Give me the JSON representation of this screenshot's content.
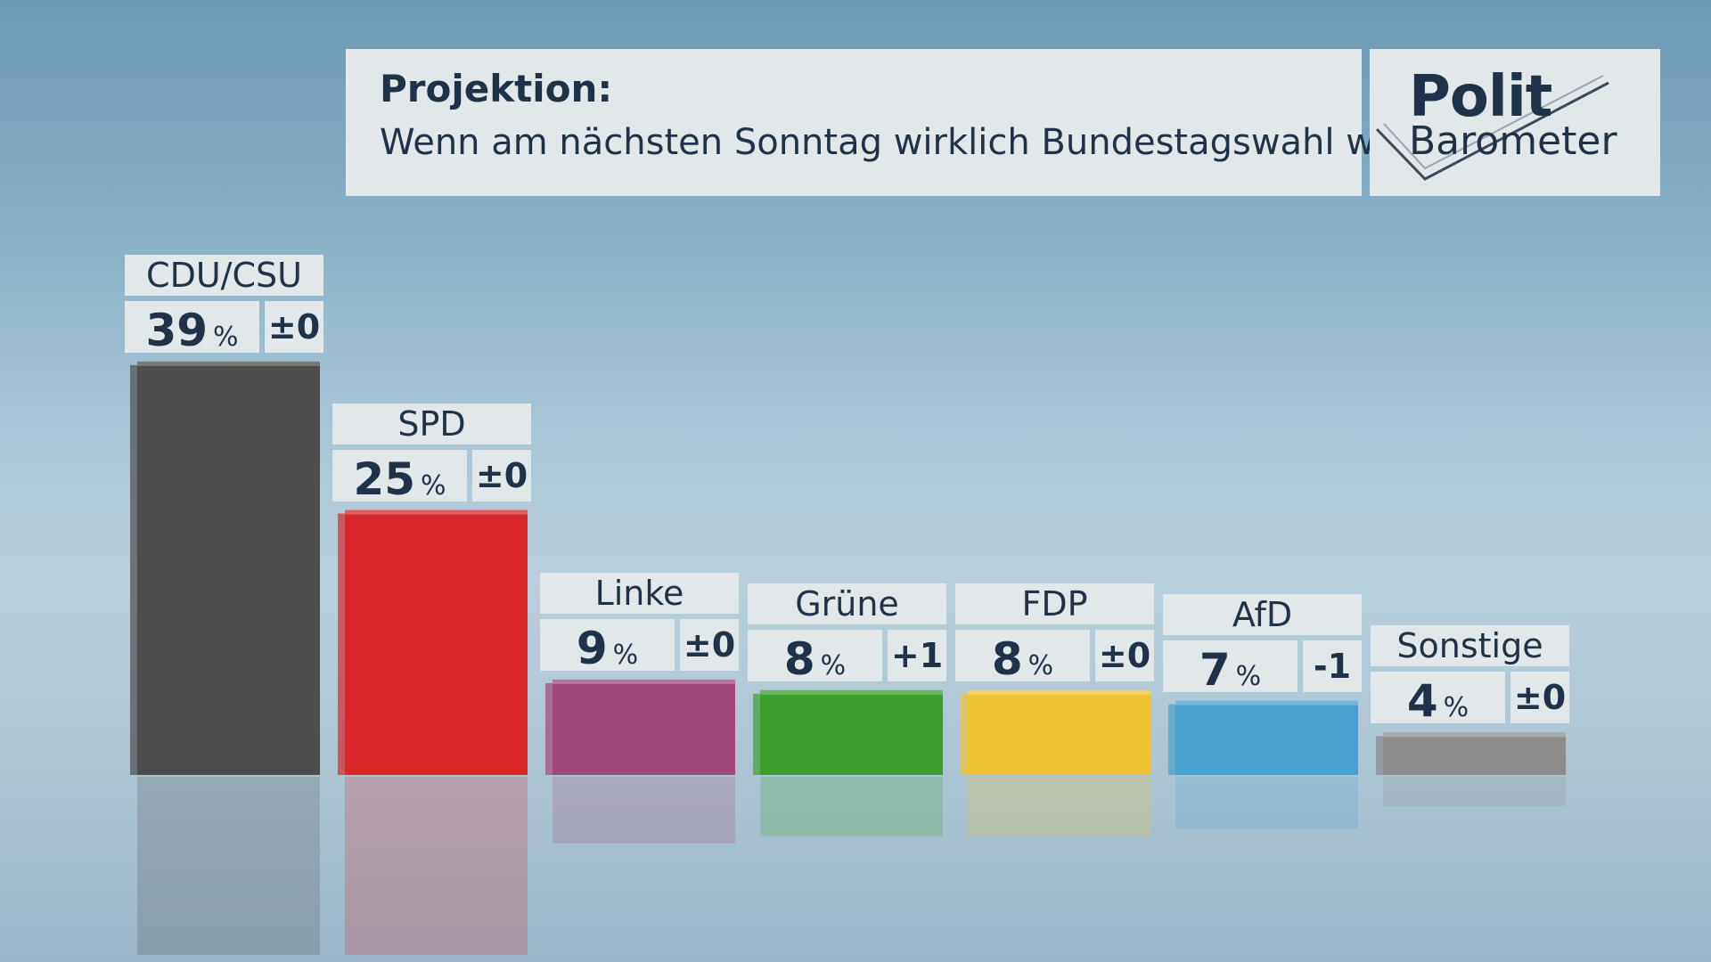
{
  "header": {
    "title": "Projektion:",
    "subtitle": "Wenn am nächsten Sonntag wirklich Bundestagswahl wäre ..."
  },
  "logo": {
    "line1": "Polit",
    "line2": "Barometer"
  },
  "chart_data": {
    "type": "bar",
    "categories": [
      "CDU/CSU",
      "SPD",
      "Linke",
      "Grüne",
      "FDP",
      "AfD",
      "Sonstige"
    ],
    "values": [
      39,
      25,
      9,
      8,
      8,
      7,
      4
    ],
    "unit": "%",
    "changes": [
      "±0",
      "±0",
      "±0",
      "+1",
      "±0",
      "-1",
      "±0"
    ],
    "colors": [
      "#4d4d4d",
      "#d9272a",
      "#a3487b",
      "#3a9f2a",
      "#ecc232",
      "#48a0cf",
      "#8c8c8c"
    ],
    "title": "Projektion:",
    "xlabel": "",
    "ylabel": "",
    "ylim": [
      0,
      40
    ],
    "grid": false,
    "legend": "none"
  }
}
